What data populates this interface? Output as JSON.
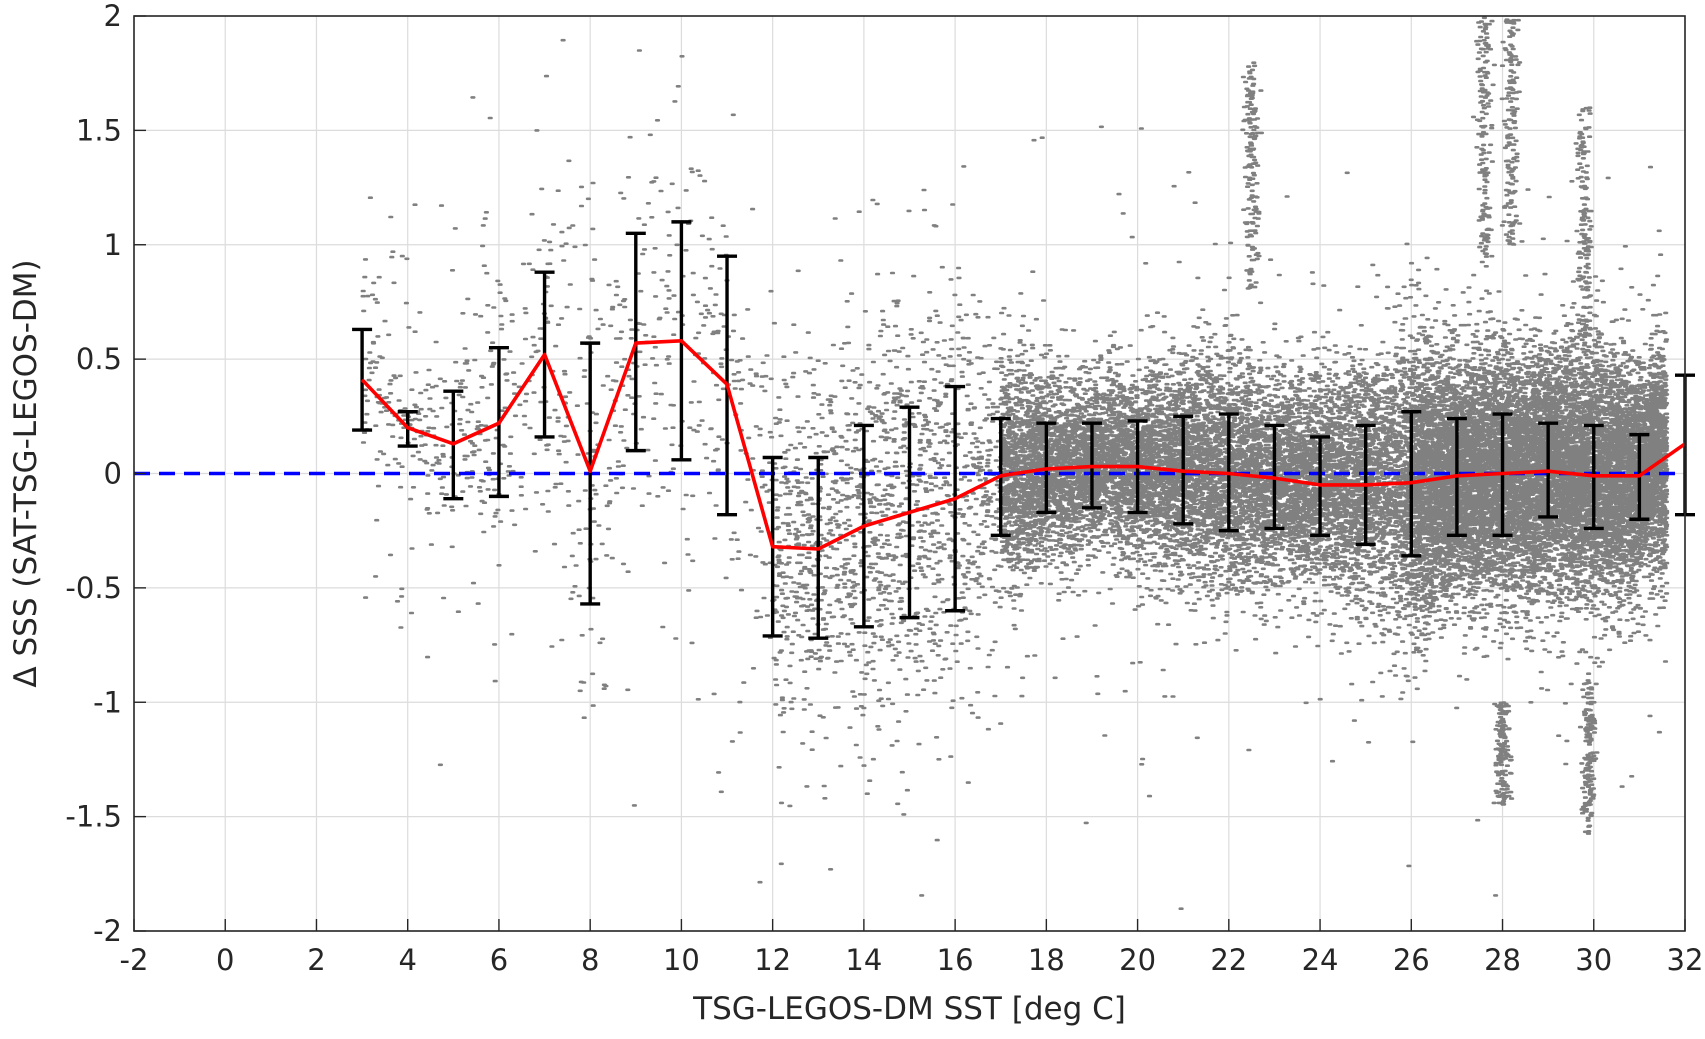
{
  "chart_data": {
    "type": "scatter",
    "title": "",
    "xlabel": "TSG-LEGOS-DM SST [deg C]",
    "ylabel": "Δ SSS (SAT-TSG-LEGOS-DM)",
    "xlim": [
      -2,
      32
    ],
    "ylim": [
      -2,
      2
    ],
    "xticks": [
      "-2",
      "0",
      "2",
      "4",
      "6",
      "8",
      "10",
      "12",
      "14",
      "16",
      "18",
      "20",
      "22",
      "24",
      "26",
      "28",
      "30",
      "32"
    ],
    "yticks": [
      "2",
      "1.5",
      "1",
      "0.5",
      "0",
      "-0.5",
      "-1",
      "-1.5",
      "-2"
    ],
    "grid": true,
    "reference_line": {
      "y": 0,
      "color": "#0000ff",
      "style": "dashed"
    },
    "scatter_color": "#808080",
    "mean_line_color": "#ff0000",
    "errorbar_color": "#000000",
    "binned_stats": [
      {
        "x": 3,
        "mean": 0.41,
        "low": 0.19,
        "high": 0.63
      },
      {
        "x": 4,
        "mean": 0.2,
        "low": 0.12,
        "high": 0.27
      },
      {
        "x": 5,
        "mean": 0.13,
        "low": -0.11,
        "high": 0.36
      },
      {
        "x": 6,
        "mean": 0.22,
        "low": -0.1,
        "high": 0.55
      },
      {
        "x": 7,
        "mean": 0.52,
        "low": 0.16,
        "high": 0.88
      },
      {
        "x": 8,
        "mean": 0.01,
        "low": -0.57,
        "high": 0.57
      },
      {
        "x": 9,
        "mean": 0.57,
        "low": 0.1,
        "high": 1.05
      },
      {
        "x": 10,
        "mean": 0.58,
        "low": 0.06,
        "high": 1.1
      },
      {
        "x": 11,
        "mean": 0.39,
        "low": -0.18,
        "high": 0.95
      },
      {
        "x": 12,
        "mean": -0.32,
        "low": -0.71,
        "high": 0.07
      },
      {
        "x": 13,
        "mean": -0.33,
        "low": -0.72,
        "high": 0.07
      },
      {
        "x": 14,
        "mean": -0.23,
        "low": -0.67,
        "high": 0.21
      },
      {
        "x": 15,
        "mean": -0.17,
        "low": -0.63,
        "high": 0.29
      },
      {
        "x": 16,
        "mean": -0.11,
        "low": -0.6,
        "high": 0.38
      },
      {
        "x": 17,
        "mean": -0.01,
        "low": -0.27,
        "high": 0.24
      },
      {
        "x": 18,
        "mean": 0.02,
        "low": -0.17,
        "high": 0.22
      },
      {
        "x": 19,
        "mean": 0.03,
        "low": -0.15,
        "high": 0.22
      },
      {
        "x": 20,
        "mean": 0.03,
        "low": -0.17,
        "high": 0.23
      },
      {
        "x": 21,
        "mean": 0.01,
        "low": -0.22,
        "high": 0.25
      },
      {
        "x": 22,
        "mean": 0.0,
        "low": -0.25,
        "high": 0.26
      },
      {
        "x": 23,
        "mean": -0.02,
        "low": -0.24,
        "high": 0.21
      },
      {
        "x": 24,
        "mean": -0.05,
        "low": -0.27,
        "high": 0.16
      },
      {
        "x": 25,
        "mean": -0.05,
        "low": -0.31,
        "high": 0.21
      },
      {
        "x": 26,
        "mean": -0.04,
        "low": -0.36,
        "high": 0.27
      },
      {
        "x": 27,
        "mean": -0.01,
        "low": -0.27,
        "high": 0.24
      },
      {
        "x": 28,
        "mean": 0.0,
        "low": -0.27,
        "high": 0.26
      },
      {
        "x": 29,
        "mean": 0.01,
        "low": -0.19,
        "high": 0.22
      },
      {
        "x": 30,
        "mean": -0.01,
        "low": -0.24,
        "high": 0.21
      },
      {
        "x": 31,
        "mean": -0.01,
        "low": -0.2,
        "high": 0.17
      },
      {
        "x": 32,
        "mean": 0.13,
        "low": -0.18,
        "high": 0.43
      }
    ]
  }
}
